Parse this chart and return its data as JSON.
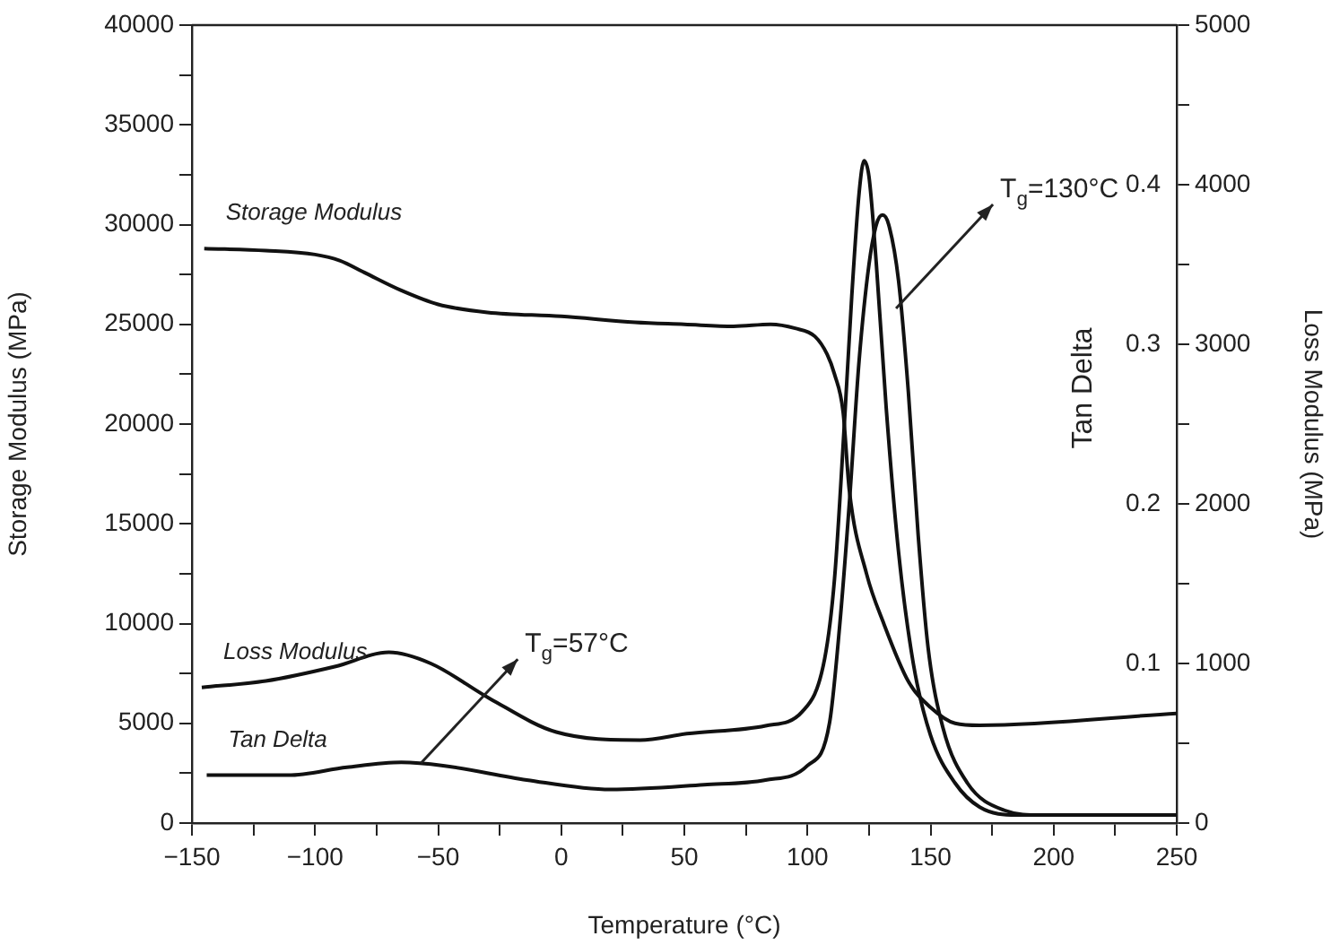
{
  "chart_data": {
    "type": "line",
    "xlabel": "Temperature (°C)",
    "ylabel": "Storage Modulus (MPa)",
    "y2label": "Tan Delta",
    "y3label": "Loss Modulus (MPa)",
    "xlim": [
      -150,
      250
    ],
    "xticks": [
      {
        "value": -150,
        "label": "−150"
      },
      {
        "value": -125,
        "label": null
      },
      {
        "value": -100,
        "label": "−100"
      },
      {
        "value": -75,
        "label": null
      },
      {
        "value": -50,
        "label": "−50"
      },
      {
        "value": -25,
        "label": null
      },
      0,
      {
        "value": 25,
        "label": null
      },
      50,
      {
        "value": 75,
        "label": null
      },
      100,
      {
        "value": 125,
        "label": null
      },
      150,
      {
        "value": 175,
        "label": null
      },
      200,
      {
        "value": 225,
        "label": null
      },
      250
    ],
    "ylim": [
      0,
      40000
    ],
    "yticks": [
      0,
      {
        "value": 2500,
        "label": null
      },
      5000,
      {
        "value": 7500,
        "label": null
      },
      10000,
      {
        "value": 12500,
        "label": null
      },
      15000,
      {
        "value": 17500,
        "label": null
      },
      20000,
      {
        "value": 22500,
        "label": null
      },
      25000,
      {
        "value": 27500,
        "label": null
      },
      30000,
      {
        "value": 32500,
        "label": null
      },
      35000,
      {
        "value": 37500,
        "label": null
      },
      40000
    ],
    "y2lim": [
      0,
      0.5
    ],
    "y2ticks": [
      0.1,
      0.2,
      0.3,
      0.4
    ],
    "y3lim": [
      0,
      5000
    ],
    "y3ticks": [
      0,
      {
        "value": 500,
        "label": null
      },
      1000,
      {
        "value": 1500,
        "label": null
      },
      2000,
      {
        "value": 2500,
        "label": null
      },
      3000,
      {
        "value": 3500,
        "label": null
      },
      4000,
      {
        "value": 4500,
        "label": null
      },
      5000
    ],
    "grid": false,
    "legend": false,
    "marker": "none",
    "line_style": "solid",
    "series": [
      {
        "name": "Storage Modulus",
        "color": "#111111",
        "axis": "y",
        "x": [
          -145,
          -120,
          -100,
          -90,
          -80,
          -65,
          -50,
          -30,
          0,
          30,
          50,
          70,
          85,
          95,
          103,
          108,
          111,
          114.5,
          117,
          124,
          131,
          141,
          150,
          160,
          170,
          250
        ],
        "values": [
          28800,
          28700,
          28500,
          28200,
          27600,
          26700,
          26000,
          25600,
          25400,
          25100,
          25000,
          24900,
          25000,
          24800,
          24400,
          23500,
          22500,
          20600,
          16700,
          12500,
          10000,
          7100,
          5800,
          5000,
          4900,
          5500
        ]
      },
      {
        "name": "Loss Modulus",
        "color": "#111111",
        "axis": "y3",
        "x": [
          -146,
          -120,
          -92,
          -70,
          -53,
          -29,
          -2,
          32,
          51,
          83,
          98,
          107,
          111,
          115,
          118,
          121,
          123,
          125,
          128,
          132,
          137,
          143,
          150,
          160,
          170,
          185,
          250
        ],
        "values": [
          850,
          890,
          980,
          1070,
          1000,
          780,
          570,
          520,
          560,
          610,
          700,
          1030,
          1530,
          2500,
          3300,
          3950,
          4150,
          4050,
          3500,
          2600,
          1700,
          1000,
          550,
          250,
          100,
          50,
          50
        ]
      },
      {
        "name": "Tan Delta",
        "color": "#111111",
        "axis": "y2",
        "x": [
          -144,
          -111,
          -87,
          -65,
          -48,
          -14,
          20,
          58,
          83,
          100,
          109,
          113,
          117,
          121,
          125,
          128,
          130.5,
          133,
          137,
          141,
          145,
          149,
          155,
          165,
          180,
          195,
          250
        ],
        "values": [
          0.03,
          0.03,
          0.035,
          0.038,
          0.036,
          0.027,
          0.021,
          0.024,
          0.027,
          0.036,
          0.063,
          0.122,
          0.2,
          0.29,
          0.35,
          0.375,
          0.381,
          0.375,
          0.34,
          0.27,
          0.18,
          0.11,
          0.06,
          0.025,
          0.008,
          0.005,
          0.005
        ]
      }
    ],
    "annotations": [
      {
        "text": "T$_{g}$=57°C",
        "x": -57,
        "y": 3000
      },
      {
        "text": "T$_{g}$=130°C",
        "x": 136,
        "y": 25800
      }
    ]
  }
}
